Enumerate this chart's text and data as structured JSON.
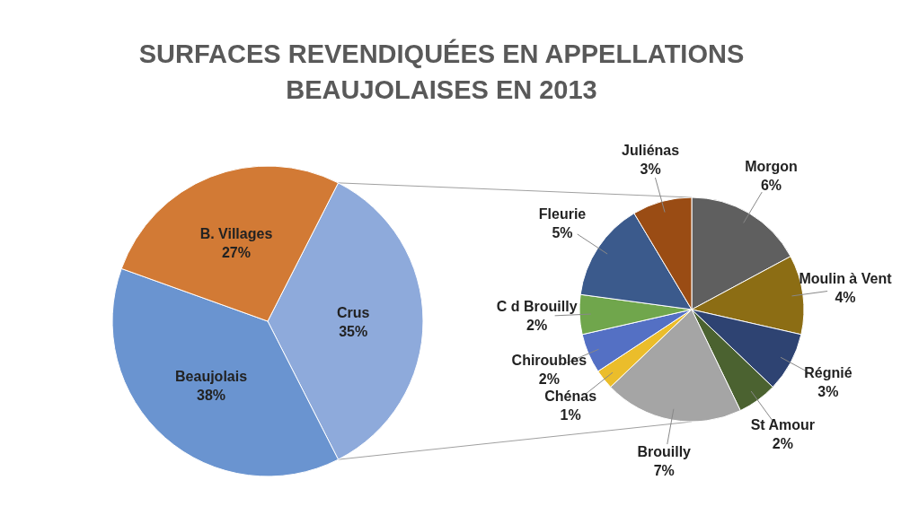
{
  "chart_data": [
    {
      "type": "pie",
      "title": "SURFACES REVENDIQUÉES EN APPELLATIONS BEAUJOLAISES EN 2013",
      "categories": [
        "Crus",
        "Beaujolais",
        "B. Villages"
      ],
      "values": [
        35,
        38,
        27
      ],
      "colors": [
        "#8eaadb",
        "#6a94d0",
        "#d27a35"
      ],
      "value_labels": [
        "35%",
        "38%",
        "27%"
      ]
    },
    {
      "type": "pie",
      "categories": [
        "Morgon",
        "Moulin à Vent",
        "Régnié",
        "St Amour",
        "Brouilly",
        "Chénas",
        "Chiroubles",
        "C d Brouilly",
        "Fleurie",
        "Juliénas"
      ],
      "values": [
        6,
        4,
        3,
        2,
        7,
        1,
        2,
        2,
        5,
        3
      ],
      "colors": [
        "#5f5f5f",
        "#8c6d14",
        "#2e4372",
        "#4b6230",
        "#a5a5a5",
        "#ebbd2b",
        "#5470c4",
        "#70a64c",
        "#3b5a8c",
        "#9a4c14"
      ],
      "value_labels": [
        "6%",
        "4%",
        "3%",
        "2%",
        "7%",
        "1%",
        "2%",
        "2%",
        "5%",
        "3%"
      ]
    }
  ]
}
